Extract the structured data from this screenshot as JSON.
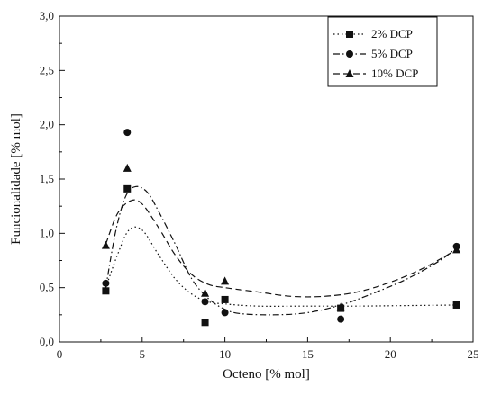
{
  "chart_data": {
    "type": "scatter",
    "title": "",
    "xlabel": "Octeno [% mol]",
    "ylabel": "Funcionalidade [% mol]",
    "xlim": [
      0,
      25
    ],
    "ylim": [
      0,
      3
    ],
    "x_ticks": [
      0,
      5,
      10,
      15,
      20,
      25
    ],
    "x_tick_labels": [
      "0",
      "5",
      "10",
      "15",
      "20",
      "25"
    ],
    "y_ticks": [
      0,
      0.5,
      1,
      1.5,
      2,
      2.5,
      3
    ],
    "y_tick_labels": [
      "0,0",
      "0,5",
      "1,0",
      "1,5",
      "2,0",
      "2,5",
      "3,0"
    ],
    "grid": false,
    "legend_position": "top-right",
    "series": [
      {
        "name": "2% DCP",
        "marker": "square",
        "line_style": "dotted",
        "color": "#111111",
        "points": [
          [
            2.8,
            0.47
          ],
          [
            4.1,
            1.41
          ],
          [
            8.8,
            0.18
          ],
          [
            10.0,
            0.39
          ],
          [
            17.0,
            0.31
          ],
          [
            24.0,
            0.34
          ]
        ],
        "fit": [
          [
            2.8,
            0.5
          ],
          [
            3.5,
            0.8
          ],
          [
            4.2,
            1.03
          ],
          [
            5.0,
            1.03
          ],
          [
            6.0,
            0.8
          ],
          [
            7.0,
            0.58
          ],
          [
            8.0,
            0.44
          ],
          [
            9.0,
            0.37
          ],
          [
            10.0,
            0.35
          ],
          [
            12.0,
            0.33
          ],
          [
            15.0,
            0.33
          ],
          [
            18.0,
            0.33
          ],
          [
            21.0,
            0.335
          ],
          [
            24.0,
            0.34
          ]
        ]
      },
      {
        "name": "5% DCP",
        "marker": "circle",
        "line_style": "dash-dot",
        "color": "#111111",
        "points": [
          [
            2.8,
            0.54
          ],
          [
            4.1,
            1.93
          ],
          [
            8.8,
            0.37
          ],
          [
            10.0,
            0.27
          ],
          [
            17.0,
            0.21
          ],
          [
            24.0,
            0.88
          ]
        ],
        "fit": [
          [
            2.8,
            0.5
          ],
          [
            3.4,
            1.02
          ],
          [
            4.0,
            1.34
          ],
          [
            4.6,
            1.43
          ],
          [
            5.3,
            1.38
          ],
          [
            6.0,
            1.2
          ],
          [
            7.0,
            0.9
          ],
          [
            8.0,
            0.58
          ],
          [
            9.0,
            0.4
          ],
          [
            10.0,
            0.3
          ],
          [
            11.0,
            0.26
          ],
          [
            13.0,
            0.25
          ],
          [
            15.0,
            0.27
          ],
          [
            17.0,
            0.34
          ],
          [
            19.0,
            0.45
          ],
          [
            21.0,
            0.58
          ],
          [
            23.0,
            0.75
          ],
          [
            24.0,
            0.87
          ]
        ]
      },
      {
        "name": "10% DCP",
        "marker": "triangle",
        "line_style": "dashed",
        "color": "#111111",
        "points": [
          [
            2.8,
            0.89
          ],
          [
            4.1,
            1.6
          ],
          [
            8.8,
            0.45
          ],
          [
            10.0,
            0.56
          ],
          [
            17.0,
            0.32
          ],
          [
            24.0,
            0.85
          ]
        ],
        "fit": [
          [
            2.8,
            0.9
          ],
          [
            3.5,
            1.18
          ],
          [
            4.3,
            1.3
          ],
          [
            5.0,
            1.27
          ],
          [
            6.0,
            1.05
          ],
          [
            7.0,
            0.8
          ],
          [
            8.0,
            0.62
          ],
          [
            9.0,
            0.53
          ],
          [
            10.0,
            0.5
          ],
          [
            12.0,
            0.46
          ],
          [
            14.0,
            0.42
          ],
          [
            16.0,
            0.42
          ],
          [
            18.0,
            0.46
          ],
          [
            20.0,
            0.55
          ],
          [
            22.0,
            0.68
          ],
          [
            24.0,
            0.85
          ]
        ]
      }
    ]
  }
}
